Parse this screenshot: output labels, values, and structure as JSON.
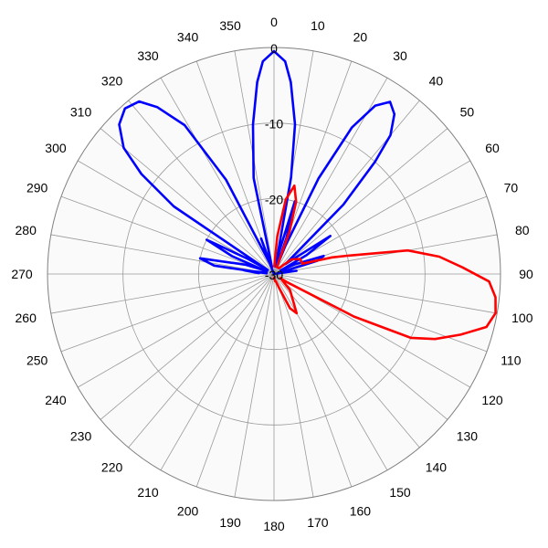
{
  "chart_data": {
    "type": "polar-line",
    "angle_direction": "clockwise",
    "zero_position": "top",
    "angle_tick_labels": [
      "0",
      "10",
      "20",
      "30",
      "40",
      "50",
      "60",
      "70",
      "80",
      "90",
      "100",
      "110",
      "120",
      "130",
      "140",
      "150",
      "160",
      "170",
      "180",
      "190",
      "200",
      "210",
      "220",
      "230",
      "240",
      "250",
      "260",
      "270",
      "280",
      "290",
      "300",
      "310",
      "320",
      "330",
      "340",
      "350"
    ],
    "radial_tick_labels": [
      "0",
      "-10",
      "-20",
      "-30"
    ],
    "rlim": [
      -30,
      0
    ],
    "grid": true,
    "background_color": "#fafafa",
    "grid_color": "#9a9a9a",
    "series": [
      {
        "color": "#0000ff",
        "points": [
          [
            -16,
            -29
          ],
          [
            -12,
            -17
          ],
          [
            -8,
            -10
          ],
          [
            -5,
            -4.5
          ],
          [
            -3,
            -1.8
          ],
          [
            0,
            -0.5
          ],
          [
            3,
            -1.8
          ],
          [
            5,
            -4.5
          ],
          [
            8,
            -10
          ],
          [
            10,
            -17
          ],
          [
            12,
            -29
          ],
          [
            13,
            -27
          ],
          [
            16,
            -20
          ],
          [
            19,
            -25
          ],
          [
            21,
            -29
          ],
          [
            22,
            -26
          ],
          [
            25,
            -16
          ],
          [
            28,
            -8
          ],
          [
            31,
            -4
          ],
          [
            34,
            -2.5
          ],
          [
            37,
            -3.5
          ],
          [
            40,
            -6
          ],
          [
            42,
            -10
          ],
          [
            45,
            -17
          ],
          [
            49,
            -28
          ],
          [
            52,
            -27
          ],
          [
            56,
            -21
          ],
          [
            60,
            -25
          ],
          [
            62,
            -29
          ],
          [
            62,
            -29
          ],
          [
            65,
            -27
          ],
          [
            70,
            -23
          ],
          [
            73,
            -24
          ],
          [
            76,
            -29
          ],
          [
            78,
            -29
          ],
          [
            82,
            -27
          ],
          [
            88,
            -30
          ],
          [
            -22,
            -29
          ],
          [
            -20,
            -25
          ],
          [
            -18,
            -29
          ],
          [
            -23,
            -28
          ],
          [
            -27,
            -16
          ],
          [
            -31,
            -7
          ],
          [
            -35,
            -3
          ],
          [
            -38,
            -1
          ],
          [
            -42,
            -0.5
          ],
          [
            -46,
            -1.5
          ],
          [
            -50,
            -4
          ],
          [
            -53,
            -8
          ],
          [
            -56,
            -14
          ],
          [
            -58,
            -29
          ],
          [
            -57,
            -29
          ],
          [
            -60,
            -26
          ],
          [
            -63,
            -20
          ],
          [
            -67,
            -24
          ],
          [
            -70,
            -29
          ],
          [
            -68,
            -29
          ],
          [
            -72,
            -26
          ],
          [
            -78,
            -20
          ],
          [
            -82,
            -22
          ],
          [
            -86,
            -29
          ],
          [
            -80,
            -29
          ],
          [
            -83,
            -26
          ],
          [
            -87,
            -28
          ]
        ]
      },
      {
        "color": "#ff0000",
        "points": [
          [
            2,
            -29
          ],
          [
            5,
            -25
          ],
          [
            9,
            -20
          ],
          [
            13,
            -18
          ],
          [
            17,
            -20
          ],
          [
            20,
            -24
          ],
          [
            22,
            -29
          ],
          [
            40,
            -29
          ],
          [
            50,
            -27
          ],
          [
            60,
            -26
          ],
          [
            70,
            -26
          ],
          [
            74,
            -22
          ],
          [
            76,
            -20
          ],
          [
            80,
            -12
          ],
          [
            84,
            -8
          ],
          [
            88,
            -5
          ],
          [
            92,
            -1.5
          ],
          [
            96,
            -0.5
          ],
          [
            100,
            -0.2
          ],
          [
            104,
            -1
          ],
          [
            108,
            -4
          ],
          [
            112,
            -7
          ],
          [
            115,
            -10
          ],
          [
            118,
            -18
          ],
          [
            122,
            -28
          ],
          [
            122,
            -29
          ],
          [
            135,
            -27
          ],
          [
            150,
            -24
          ],
          [
            155,
            -25
          ],
          [
            160,
            -28
          ],
          [
            165,
            -29
          ],
          [
            170,
            -29
          ],
          [
            180,
            -29.5
          ]
        ]
      }
    ]
  }
}
